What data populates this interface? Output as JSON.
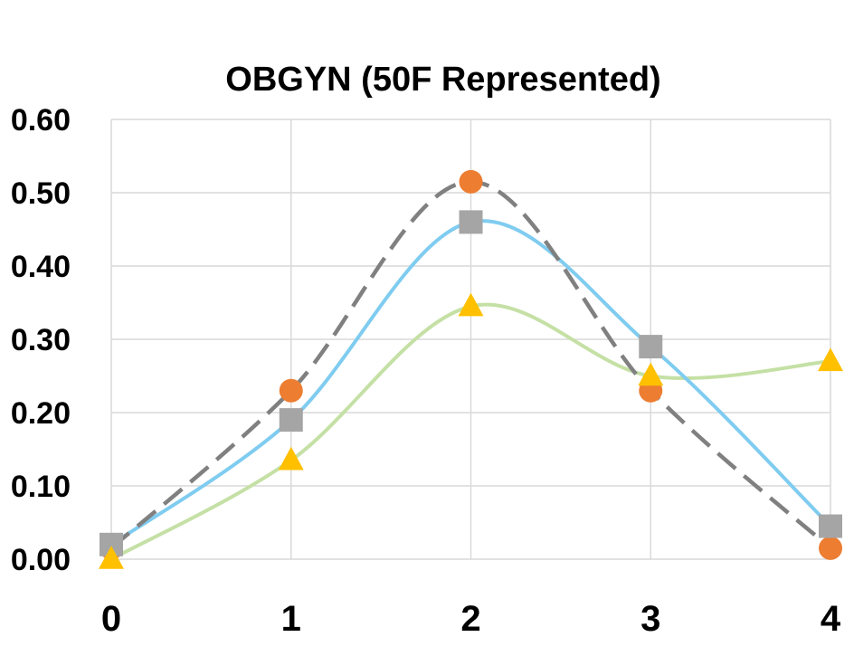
{
  "chart_data": {
    "type": "line",
    "title": "OBGYN (50F Represented)",
    "xlabel": "",
    "ylabel": "",
    "x": [
      0,
      1,
      2,
      3,
      4
    ],
    "xlim": [
      0,
      4
    ],
    "ylim": [
      0,
      0.6
    ],
    "x_ticks": [
      "0",
      "1",
      "2",
      "3",
      "4"
    ],
    "y_ticks": [
      "0.00",
      "0.10",
      "0.20",
      "0.30",
      "0.40",
      "0.50",
      "0.60"
    ],
    "grid": true,
    "smoothed": true,
    "series": [
      {
        "values": [
          0.015,
          0.23,
          0.515,
          0.23,
          0.015
        ],
        "marker": "circle",
        "marker_color": "#ED7D31",
        "line_color": "#808080",
        "line_style": "dashed"
      },
      {
        "values": [
          0.02,
          0.19,
          0.46,
          0.29,
          0.045
        ],
        "marker": "square",
        "marker_color": "#A5A5A5",
        "line_color": "#7FCCF0",
        "line_style": "solid"
      },
      {
        "values": [
          0.0,
          0.135,
          0.345,
          0.25,
          0.27
        ],
        "marker": "triangle",
        "marker_color": "#FFC000",
        "line_color": "#C5E0A5",
        "line_style": "solid"
      }
    ]
  }
}
